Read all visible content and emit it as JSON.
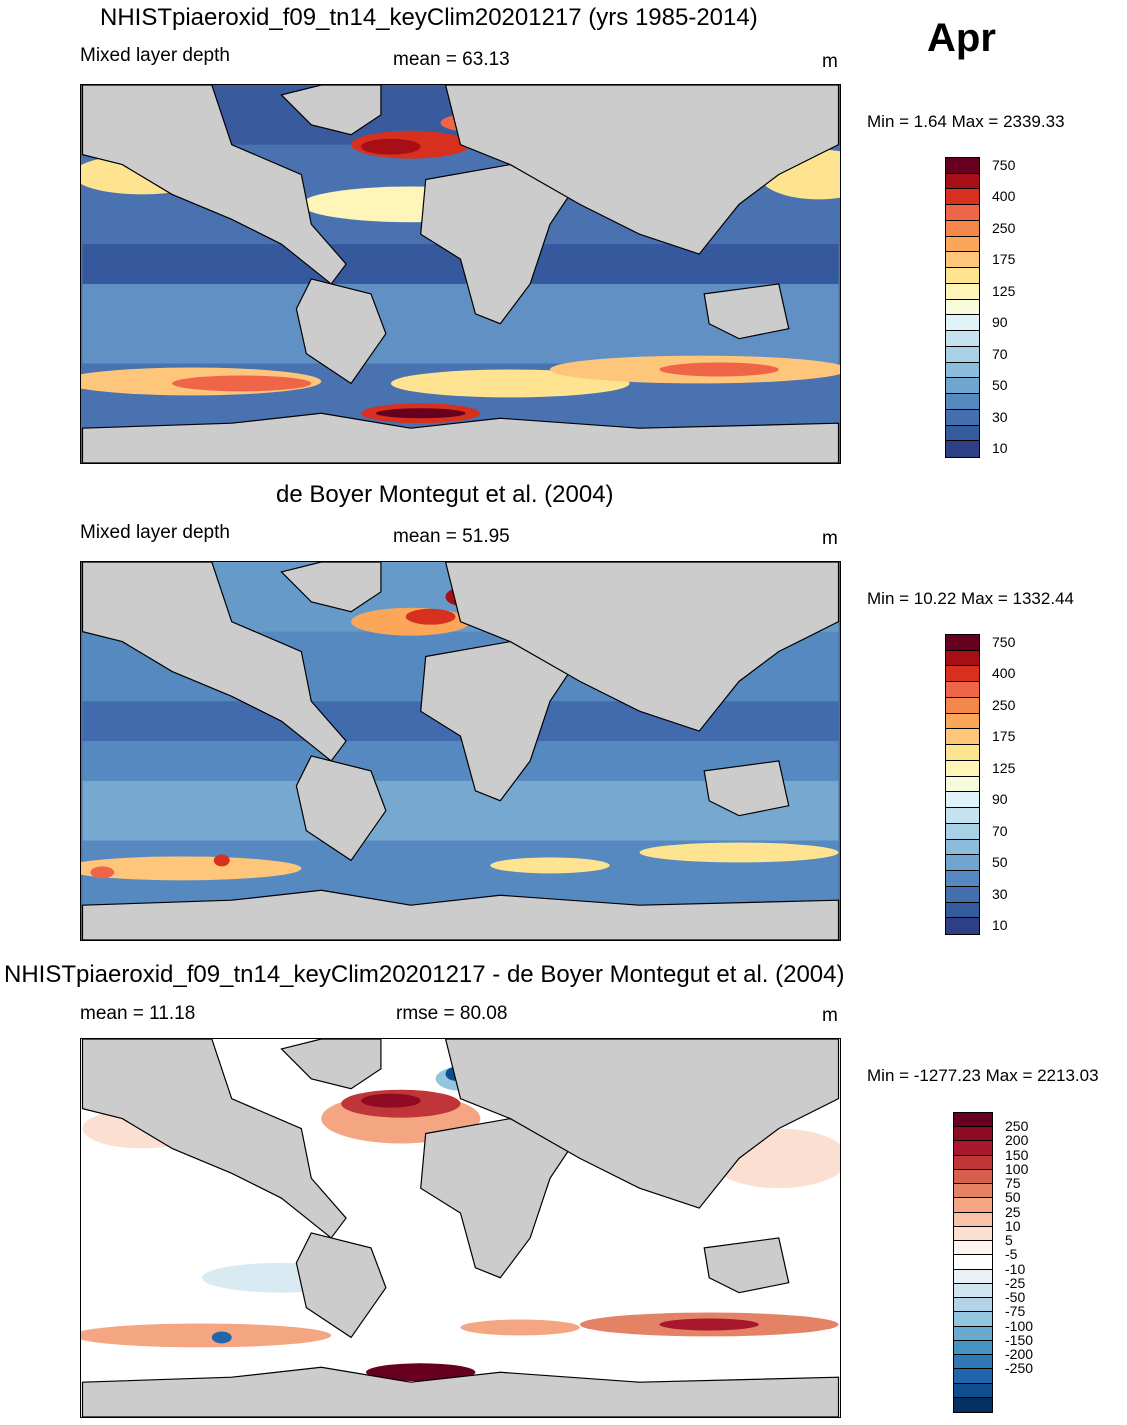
{
  "month": "Apr",
  "panels": [
    {
      "title": "NHISTpiaeroxid_f09_tn14_keyClim20201217 (yrs 1985-2014)",
      "left_label": "Mixed layer depth",
      "center_label": "mean =  63.13",
      "units": "m",
      "minmax": "Min =   1.64 Max = 2339.33",
      "colorbar": {
        "colors": [
          "#67001f",
          "#a50f15",
          "#d7301f",
          "#ef6548",
          "#f4874b",
          "#fca65a",
          "#fdc67a",
          "#fee391",
          "#fff5b8",
          "#f7fcdd",
          "#e0f3f8",
          "#c6e2ef",
          "#a9d1e6",
          "#8cbcdb",
          "#6fa5cf",
          "#5689c0",
          "#4470b0",
          "#355b9f",
          "#2e3e87"
        ],
        "labels": [
          "750",
          "400",
          "250",
          "175",
          "125",
          "90",
          "70",
          "50",
          "30",
          "10"
        ]
      }
    },
    {
      "title": "de Boyer Montegut et al. (2004)",
      "left_label": "Mixed layer depth",
      "center_label": "mean =  51.95",
      "units": "m",
      "minmax": "Min =  10.22 Max = 1332.44",
      "colorbar": {
        "colors": [
          "#67001f",
          "#a50f15",
          "#d7301f",
          "#ef6548",
          "#f4874b",
          "#fca65a",
          "#fdc67a",
          "#fee391",
          "#fff5b8",
          "#f7fcdd",
          "#e0f3f8",
          "#c6e2ef",
          "#a9d1e6",
          "#8cbcdb",
          "#6fa5cf",
          "#5689c0",
          "#4470b0",
          "#355b9f",
          "#2e3e87"
        ],
        "labels": [
          "750",
          "400",
          "250",
          "175",
          "125",
          "90",
          "70",
          "50",
          "30",
          "10"
        ]
      }
    },
    {
      "title": "NHISTpiaeroxid_f09_tn14_keyClim20201217 - de Boyer Montegut et al. (2004)",
      "left_label": "mean =  11.18",
      "center_label": "rmse =  80.08",
      "units": "m",
      "minmax": "Min = -1277.23 Max = 2213.03",
      "colorbar": {
        "colors": [
          "#67001f",
          "#8e0b23",
          "#a8172d",
          "#c03538",
          "#d6604d",
          "#e48266",
          "#f4a582",
          "#f8c3a6",
          "#fbe0d2",
          "#fff4ee",
          "#ffffff",
          "#eaf2f8",
          "#d1e5f0",
          "#b3d4e8",
          "#92c5de",
          "#6aaad0",
          "#4393c3",
          "#2f79b5",
          "#2166ac",
          "#104d8e",
          "#053061"
        ],
        "labels": [
          "250",
          "200",
          "150",
          "100",
          "75",
          "50",
          "25",
          "10",
          "5",
          "-5",
          "-10",
          "-25",
          "-50",
          "-75",
          "-100",
          "-150",
          "-200",
          "-250"
        ]
      }
    }
  ]
}
